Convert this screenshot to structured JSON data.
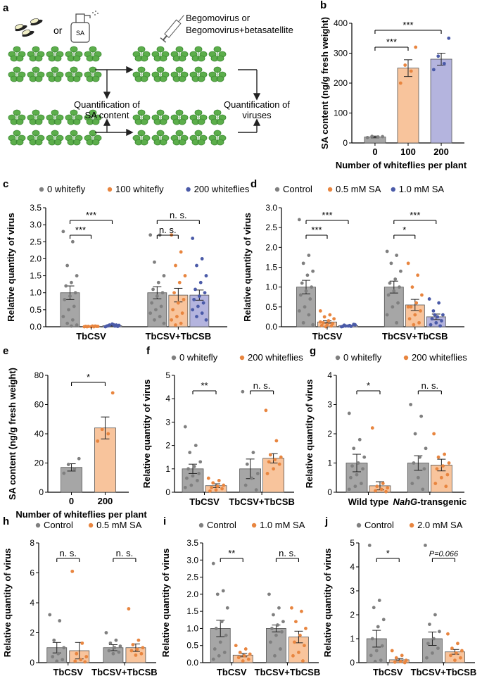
{
  "schematic": {
    "panel_letter": "a",
    "or_text": "or",
    "spray_text": "SA",
    "virus_line1": "Begomovirus or",
    "virus_line2": "Begomovirus+betasatellite",
    "quant_sa_line1": "Quantification of",
    "quant_sa_line2": "SA content",
    "quant_virus_line1": "Quantification of",
    "quant_virus_line2": "viruses"
  },
  "colors": {
    "grey": "#a6a6a6",
    "grey_dot": "#7f7f7f",
    "orange": "#f8c49c",
    "orange_dot": "#e8853f",
    "purple": "#b4b4de",
    "purple_dot": "#4a5aa8",
    "leaf": "#5cae4b",
    "leaf_dark": "#3d8a34"
  },
  "chart_data": [
    {
      "panel": "b",
      "type": "bar",
      "ylabel": "SA content (ng/g fresh weight)",
      "xlabel": "Number of whiteflies per plant",
      "ylim": [
        0,
        400
      ],
      "yticks": [
        0,
        100,
        200,
        300,
        400
      ],
      "categories": [
        "0",
        "100",
        "200"
      ],
      "values": [
        20,
        250,
        280
      ],
      "errors": [
        3,
        28,
        20
      ],
      "colors": [
        "grey",
        "orange",
        "purple"
      ],
      "points": [
        [
          18,
          20,
          22,
          21
        ],
        [
          200,
          240,
          260,
          320
        ],
        [
          245,
          265,
          290,
          350
        ]
      ],
      "significance": [
        {
          "a": 0,
          "b": 1,
          "label": "***"
        },
        {
          "a": 0,
          "b": 2,
          "label": "***"
        }
      ]
    },
    {
      "panel": "c",
      "type": "bar",
      "ylabel": "Relative quantity of virus",
      "legend": [
        "0 whitefly",
        "100 whitefly",
        "200 whiteflies"
      ],
      "ylim": [
        0,
        3.5
      ],
      "yticks": [
        0.0,
        0.5,
        1.0,
        1.5,
        2.0,
        2.5,
        3.0,
        3.5
      ],
      "groups": [
        "TbCSV",
        "TbCSV+TbCSB"
      ],
      "values": [
        [
          1.0,
          0.01,
          0.03
        ],
        [
          1.0,
          0.93,
          0.93
        ]
      ],
      "errors": [
        [
          0.2,
          0.005,
          0.01
        ],
        [
          0.18,
          0.2,
          0.15
        ]
      ],
      "colors": [
        "grey",
        "orange",
        "purple"
      ],
      "points": [
        [
          [
            2.8,
            2.5,
            1.8,
            1.5,
            1.3,
            1.2,
            1.0,
            0.9,
            0.8,
            0.6,
            0.5,
            0.3,
            0.2,
            0.1,
            0.05,
            0.02
          ],
          [
            0.0,
            0.0,
            0.01,
            0.01,
            0.02,
            0.0,
            0.01,
            0.0,
            0.01,
            0.02
          ],
          [
            0.0,
            0.02,
            0.05,
            0.04,
            0.06,
            0.03,
            0.01,
            0.08,
            0.02,
            0.05
          ]
        ],
        [
          [
            2.7,
            2.7,
            1.9,
            1.5,
            1.3,
            1.1,
            1.0,
            0.9,
            0.7,
            0.6,
            0.5,
            0.4,
            0.3,
            0.2,
            0.1
          ],
          [
            2.7,
            2.2,
            1.8,
            1.5,
            1.3,
            1.0,
            0.8,
            0.7,
            0.5,
            0.4,
            0.3,
            0.2,
            0.1,
            0.05
          ],
          [
            2.6,
            2.0,
            1.8,
            1.5,
            1.3,
            1.1,
            1.0,
            0.9,
            0.8,
            0.7,
            0.6,
            0.5,
            0.4,
            0.3,
            0.2
          ]
        ]
      ],
      "significance": [
        {
          "g": 0,
          "a": 0,
          "b": 1,
          "label": "***"
        },
        {
          "g": 0,
          "a": 0,
          "b": 2,
          "label": "***"
        },
        {
          "g": 1,
          "a": 0,
          "b": 1,
          "label": "n. s."
        },
        {
          "g": 1,
          "a": 0,
          "b": 2,
          "label": "n. s."
        }
      ]
    },
    {
      "panel": "d",
      "type": "bar",
      "ylabel": "Relative quantity of virus",
      "legend": [
        "Control",
        "0.5 mM SA",
        "1.0 mM SA"
      ],
      "ylim": [
        0,
        3.0
      ],
      "yticks": [
        0.0,
        0.5,
        1.0,
        1.5,
        2.0,
        2.5,
        3.0
      ],
      "groups": [
        "TbCSV",
        "TbCSV+TbCSB"
      ],
      "values": [
        [
          1.0,
          0.12,
          0.03
        ],
        [
          1.0,
          0.55,
          0.25
        ]
      ],
      "errors": [
        [
          0.17,
          0.03,
          0.01
        ],
        [
          0.15,
          0.14,
          0.07
        ]
      ],
      "colors": [
        "grey",
        "orange",
        "purple"
      ],
      "points": [
        [
          [
            2.7,
            1.8,
            1.6,
            1.4,
            1.3,
            1.1,
            1.0,
            0.9,
            0.8,
            0.7,
            0.5,
            0.4,
            0.3,
            0.1,
            0.05
          ],
          [
            0.4,
            0.3,
            0.25,
            0.2,
            0.15,
            0.1,
            0.08,
            0.05,
            0.03,
            0.02,
            0.0,
            0.12
          ],
          [
            0.0,
            0.01,
            0.02,
            0.05,
            0.03,
            0.04,
            0.06,
            0.02,
            0.01
          ]
        ],
        [
          [
            1.9,
            1.8,
            1.6,
            1.4,
            1.2,
            1.1,
            1.0,
            0.9,
            0.8,
            0.6,
            0.5,
            0.3,
            0.1
          ],
          [
            1.6,
            1.3,
            1.0,
            0.8,
            0.6,
            0.5,
            0.4,
            0.3,
            0.2,
            0.1,
            0.05,
            0.5
          ],
          [
            0.7,
            0.6,
            0.4,
            0.3,
            0.25,
            0.2,
            0.15,
            0.1,
            0.05,
            0.02,
            0.3
          ]
        ]
      ],
      "significance": [
        {
          "g": 0,
          "a": 0,
          "b": 1,
          "label": "***"
        },
        {
          "g": 0,
          "a": 0,
          "b": 2,
          "label": "***"
        },
        {
          "g": 1,
          "a": 0,
          "b": 1,
          "label": "*"
        },
        {
          "g": 1,
          "a": 0,
          "b": 2,
          "label": "***"
        }
      ]
    },
    {
      "panel": "e",
      "type": "bar",
      "ylabel": "SA content (ng/g fresh weight)",
      "xlabel": "Number of whiteflies per plant",
      "ylim": [
        0,
        80
      ],
      "yticks": [
        0,
        20,
        40,
        60,
        80
      ],
      "categories": [
        "0",
        "200"
      ],
      "values": [
        17,
        44
      ],
      "errors": [
        2.5,
        7.5
      ],
      "colors": [
        "grey",
        "orange"
      ],
      "points": [
        [
          13,
          16,
          19,
          23
        ],
        [
          35,
          40,
          43,
          68
        ]
      ],
      "significance": [
        {
          "a": 0,
          "b": 1,
          "label": "*"
        }
      ]
    },
    {
      "panel": "f",
      "type": "bar",
      "ylabel": "Relative quantity of virus",
      "legend": [
        "0 whitefly",
        "200 whiteflies"
      ],
      "ylim": [
        0,
        5
      ],
      "yticks": [
        0,
        1,
        2,
        3,
        4,
        5
      ],
      "groups": [
        "TbCSV",
        "TbCSV+TbCSB"
      ],
      "values": [
        [
          1.0,
          0.28
        ],
        [
          1.0,
          1.45
        ]
      ],
      "errors": [
        [
          0.2,
          0.08
        ],
        [
          0.42,
          0.2
        ]
      ],
      "colors": [
        "grey",
        "orange"
      ],
      "points": [
        [
          [
            2.8,
            2.0,
            1.7,
            1.3,
            1.1,
            1.0,
            0.8,
            0.7,
            0.6,
            0.5,
            0.3,
            0.2
          ],
          [
            0.6,
            0.5,
            0.4,
            0.3,
            0.25,
            0.2,
            0.15,
            0.1,
            0.05
          ]
        ],
        [
          [
            4.3,
            1.7,
            1.2,
            0.8,
            0.6,
            0.3,
            0.1
          ],
          [
            3.5,
            2.2,
            1.6,
            1.5,
            1.4,
            1.3,
            1.2,
            1.0,
            0.8
          ]
        ]
      ],
      "significance": [
        {
          "g": 0,
          "a": 0,
          "b": 1,
          "label": "**"
        },
        {
          "g": 1,
          "a": 0,
          "b": 1,
          "label": "n. s."
        }
      ]
    },
    {
      "panel": "g",
      "type": "bar",
      "ylabel": "Relative quantity of virus",
      "legend": [
        "0 whitefly",
        "200 whiteflies"
      ],
      "ylim": [
        0,
        4
      ],
      "yticks": [
        0,
        1,
        2,
        3,
        4
      ],
      "groups": [
        "Wild type",
        "NahG-transgenic"
      ],
      "values": [
        [
          1.0,
          0.22
        ],
        [
          1.0,
          0.93
        ]
      ],
      "errors": [
        [
          0.3,
          0.14
        ],
        [
          0.25,
          0.2
        ]
      ],
      "colors": [
        "grey",
        "orange"
      ],
      "points": [
        [
          [
            2.7,
            1.8,
            1.5,
            1.2,
            1.0,
            0.9,
            0.8,
            0.6,
            0.5,
            0.3,
            0.2,
            0.1
          ],
          [
            2.2,
            0.3,
            0.2,
            0.15,
            0.1,
            0.05,
            0.02
          ]
        ],
        [
          [
            3.0,
            2.6,
            2.0,
            1.5,
            1.2,
            1.0,
            0.8,
            0.5,
            0.3,
            0.1
          ],
          [
            2.0,
            1.3,
            1.2,
            1.0,
            0.9,
            0.8,
            0.6,
            0.5,
            0.3,
            0.2
          ]
        ]
      ],
      "significance": [
        {
          "g": 0,
          "a": 0,
          "b": 1,
          "label": "*"
        },
        {
          "g": 1,
          "a": 0,
          "b": 1,
          "label": "n. s."
        }
      ]
    },
    {
      "panel": "h",
      "type": "bar",
      "ylabel": "Relative quantity of virus",
      "legend": [
        "Control",
        "0.5 mM SA"
      ],
      "ylim": [
        0,
        8
      ],
      "yticks": [
        0,
        2,
        4,
        6,
        8
      ],
      "groups": [
        "TbCSV",
        "TbCSV+TbCSB"
      ],
      "values": [
        [
          1.0,
          0.8
        ],
        [
          1.0,
          1.0
        ]
      ],
      "errors": [
        [
          0.35,
          0.55
        ],
        [
          0.2,
          0.25
        ]
      ],
      "colors": [
        "grey",
        "orange"
      ],
      "points": [
        [
          [
            3.2,
            2.8,
            1.5,
            1.0,
            0.6,
            0.4,
            0.2,
            0.1
          ],
          [
            6.1,
            1.3,
            0.6,
            0.4,
            0.2,
            0.1,
            0.05
          ]
        ],
        [
          [
            2.0,
            1.5,
            1.3,
            1.1,
            1.0,
            0.8,
            0.7,
            0.6
          ],
          [
            3.6,
            1.5,
            1.2,
            1.0,
            0.9,
            0.8,
            0.6,
            0.5
          ]
        ]
      ],
      "significance": [
        {
          "g": 0,
          "a": 0,
          "b": 1,
          "label": "n. s."
        },
        {
          "g": 1,
          "a": 0,
          "b": 1,
          "label": "n. s."
        }
      ]
    },
    {
      "panel": "i",
      "type": "bar",
      "ylabel": "Relative quantity of virus",
      "legend": [
        "Control",
        "1.0 mM SA"
      ],
      "ylim": [
        0,
        3.5
      ],
      "yticks": [
        0.0,
        0.5,
        1.0,
        1.5,
        2.0,
        2.5,
        3.0,
        3.5
      ],
      "groups": [
        "TbCSV",
        "TbCSV+TbCSB"
      ],
      "values": [
        [
          1.0,
          0.22
        ],
        [
          1.0,
          0.75
        ]
      ],
      "errors": [
        [
          0.24,
          0.05
        ],
        [
          0.1,
          0.17
        ]
      ],
      "colors": [
        "grey",
        "orange"
      ],
      "points": [
        [
          [
            2.9,
            2.1,
            2.0,
            1.6,
            1.2,
            1.0,
            0.8,
            0.6,
            0.4,
            0.3,
            0.2,
            0.1
          ],
          [
            0.5,
            0.4,
            0.3,
            0.25,
            0.2,
            0.15,
            0.1,
            0.05
          ]
        ],
        [
          [
            2.0,
            1.6,
            1.4,
            1.2,
            1.1,
            1.0,
            0.9,
            0.8,
            0.6,
            0.4,
            0.2
          ],
          [
            1.6,
            1.5,
            1.2,
            1.0,
            0.8,
            0.6,
            0.5,
            0.3,
            0.2,
            0.05
          ]
        ]
      ],
      "significance": [
        {
          "g": 0,
          "a": 0,
          "b": 1,
          "label": "**"
        },
        {
          "g": 1,
          "a": 0,
          "b": 1,
          "label": "n. s."
        }
      ]
    },
    {
      "panel": "j",
      "type": "bar",
      "ylabel": "Relative quantity of virus",
      "legend": [
        "Control",
        "2.0 mM SA"
      ],
      "ylim": [
        0,
        5
      ],
      "yticks": [
        0,
        1,
        2,
        3,
        4,
        5
      ],
      "groups": [
        "TbCSV",
        "TbCSV+TbCSB"
      ],
      "values": [
        [
          1.0,
          0.12
        ],
        [
          1.0,
          0.45
        ]
      ],
      "errors": [
        [
          0.35,
          0.05
        ],
        [
          0.28,
          0.1
        ]
      ],
      "colors": [
        "grey",
        "orange"
      ],
      "points": [
        [
          [
            4.9,
            2.6,
            2.3,
            1.8,
            1.5,
            1.0,
            0.7,
            0.5,
            0.3,
            0.1,
            0.05
          ],
          [
            0.5,
            0.3,
            0.2,
            0.1,
            0.05,
            0.02,
            0.0
          ]
        ],
        [
          [
            4.9,
            2.0,
            1.6,
            1.3,
            1.0,
            0.8,
            0.6,
            0.4,
            0.2
          ],
          [
            1.2,
            0.8,
            0.6,
            0.5,
            0.4,
            0.3,
            0.2,
            0.1
          ]
        ]
      ],
      "significance": [
        {
          "g": 0,
          "a": 0,
          "b": 1,
          "label": "*"
        },
        {
          "g": 1,
          "a": 0,
          "b": 1,
          "label": "P=0.066",
          "italic": true
        }
      ]
    }
  ]
}
